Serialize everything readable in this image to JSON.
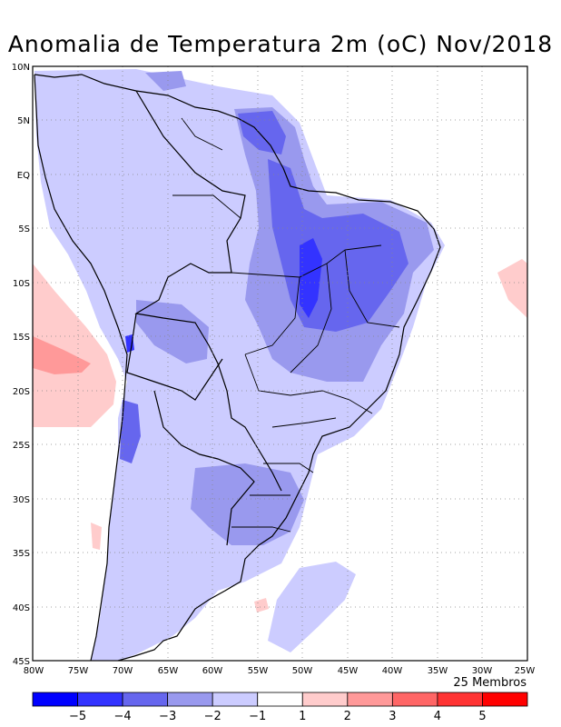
{
  "title": "Anomalia de Temperatura 2m (oC) Nov/2018",
  "members_label": "25 Membros",
  "lat_labels": [
    "10N",
    "5N",
    "EQ",
    "5S",
    "10S",
    "15S",
    "20S",
    "25S",
    "30S",
    "35S",
    "40S",
    "45S"
  ],
  "lon_labels": [
    "80W",
    "75W",
    "70W",
    "65W",
    "60W",
    "55W",
    "50W",
    "45W",
    "40W",
    "35W",
    "30W",
    "25W"
  ],
  "colorbar": {
    "colors": [
      "#0000ff",
      "#3333ff",
      "#6666ee",
      "#9999ee",
      "#ccccff",
      "#ffffff",
      "#ffcccc",
      "#ff9999",
      "#ff6666",
      "#ff3333",
      "#ff0000"
    ],
    "labels": [
      "-5",
      "-4",
      "-3",
      "-2",
      "-1",
      "1",
      "2",
      "3",
      "4",
      "5"
    ]
  }
}
